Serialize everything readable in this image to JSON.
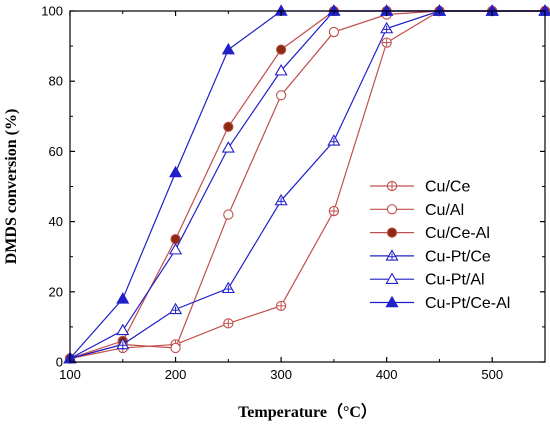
{
  "chart_data": {
    "type": "line",
    "title": "",
    "xlabel": "Temperature（°C）",
    "ylabel": "DMDS conversion (%)",
    "xlim": [
      100,
      550
    ],
    "ylim": [
      0,
      100
    ],
    "xticks": [
      100,
      200,
      300,
      400,
      500
    ],
    "yticks": [
      0,
      20,
      40,
      60,
      80,
      100
    ],
    "grid": false,
    "legend_position": "right",
    "series": [
      {
        "name": "Cu/Ce",
        "color": "#c0504d",
        "marker": "circle-plus",
        "x": [
          100,
          150,
          200,
          250,
          300,
          350,
          400,
          450,
          500,
          550
        ],
        "y": [
          1,
          4,
          5,
          11,
          16,
          43,
          91,
          100,
          100,
          100
        ]
      },
      {
        "name": "Cu/Al",
        "color": "#c0504d",
        "marker": "circle-open",
        "x": [
          100,
          150,
          200,
          250,
          300,
          350,
          400,
          450,
          500,
          550
        ],
        "y": [
          1,
          5,
          4,
          42,
          76,
          94,
          99,
          100,
          100,
          100
        ]
      },
      {
        "name": "Cu/Ce-Al",
        "color": "#c0504d",
        "marker": "circle-filled",
        "x": [
          100,
          150,
          200,
          250,
          300,
          350,
          400,
          450,
          500,
          550
        ],
        "y": [
          1,
          6,
          35,
          67,
          89,
          100,
          100,
          100,
          100,
          100
        ]
      },
      {
        "name": "Cu-Pt/Ce",
        "color": "#2020c8",
        "marker": "triangle-plus",
        "x": [
          100,
          150,
          200,
          250,
          300,
          350,
          400,
          450,
          500,
          550
        ],
        "y": [
          1,
          5,
          15,
          21,
          46,
          63,
          95,
          100,
          100,
          100
        ]
      },
      {
        "name": "Cu-Pt/Al",
        "color": "#2020c8",
        "marker": "triangle-open",
        "x": [
          100,
          150,
          200,
          250,
          300,
          350,
          400,
          450,
          500,
          550
        ],
        "y": [
          1,
          9,
          32,
          61,
          83,
          100,
          100,
          100,
          100,
          100
        ]
      },
      {
        "name": "Cu-Pt/Ce-Al",
        "color": "#2020c8",
        "marker": "triangle-filled",
        "x": [
          100,
          150,
          200,
          250,
          300,
          350,
          400,
          450,
          500,
          550
        ],
        "y": [
          1,
          18,
          54,
          89,
          100,
          100,
          100,
          100,
          100,
          100
        ]
      }
    ]
  }
}
